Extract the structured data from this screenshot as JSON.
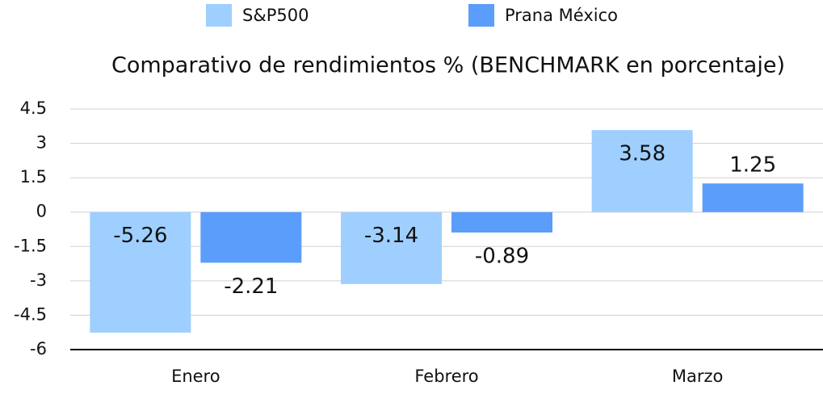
{
  "chart_data": {
    "type": "bar",
    "title": "Comparativo de rendimientos % (BENCHMARK en porcentaje)",
    "categories": [
      "Enero",
      "Febrero",
      "Marzo"
    ],
    "series": [
      {
        "name": "S&P500",
        "color": "#9fcfff",
        "values": [
          -5.26,
          -3.14,
          3.58
        ]
      },
      {
        "name": "Prana México",
        "color": "#5b9dfb",
        "values": [
          -2.21,
          -0.89,
          1.25
        ]
      }
    ],
    "ylim": [
      -6,
      4.5
    ],
    "yticks": [
      -6,
      -4.5,
      -3,
      -1.5,
      0,
      1.5,
      3,
      4.5
    ],
    "grid": true,
    "legend": "top"
  }
}
